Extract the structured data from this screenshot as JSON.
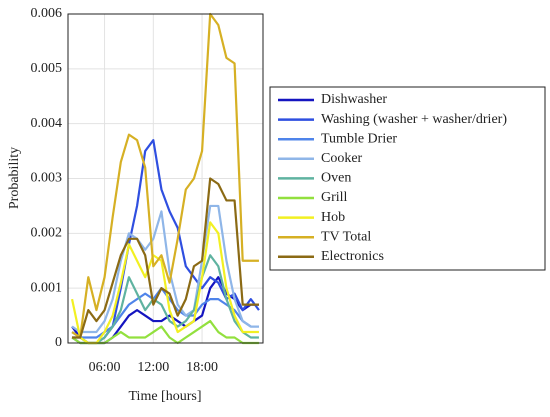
{
  "chart_data": {
    "type": "line",
    "x_label": "Time [hours]",
    "y_label": "Probability",
    "x": [
      2,
      3,
      4,
      5,
      6,
      7,
      8,
      9,
      10,
      11,
      12,
      13,
      14,
      15,
      16,
      17,
      18,
      19,
      20,
      21,
      22,
      23,
      24,
      25
    ],
    "xlim": [
      1.5,
      25.5
    ],
    "xticks": [
      {
        "value": 6,
        "label": "06:00"
      },
      {
        "value": 12,
        "label": "12:00"
      },
      {
        "value": 18,
        "label": "18:00"
      }
    ],
    "ylim": [
      0,
      0.006
    ],
    "yticks": [
      0,
      0.001,
      0.002,
      0.003,
      0.004,
      0.005,
      0.006
    ],
    "grid": true,
    "series": [
      {
        "name": "Dishwasher",
        "color": "#1414c0",
        "values": [
          0.0003,
          0.0001,
          0,
          0,
          0,
          0.0001,
          0.0003,
          0.0005,
          0.0006,
          0.0005,
          0.0004,
          0.0004,
          0.0005,
          0.0004,
          0.0003,
          0.0004,
          0.0005,
          0.001,
          0.0012,
          0.0009,
          0.0008,
          0.0006,
          0.0007,
          0.0007
        ]
      },
      {
        "name": "Washing (washer + washer/drier)",
        "color": "#2f4fe0",
        "values": [
          0.0001,
          0,
          0,
          0,
          0.0001,
          0.0003,
          0.001,
          0.0018,
          0.0025,
          0.0035,
          0.0037,
          0.0028,
          0.0024,
          0.0021,
          0.0014,
          0.0012,
          0.001,
          0.0012,
          0.0011,
          0.0008,
          0.0009,
          0.0006,
          0.0008,
          0.0006
        ]
      },
      {
        "name": "Tumble Drier",
        "color": "#4f84ea",
        "values": [
          0.0002,
          0.0001,
          0.0001,
          0.0001,
          0.0002,
          0.0003,
          0.0005,
          0.0007,
          0.0008,
          0.0009,
          0.0008,
          0.001,
          0.0008,
          0.0006,
          0.0005,
          0.0005,
          0.0007,
          0.0008,
          0.0008,
          0.0007,
          0.0006,
          0.0004,
          0.0003,
          0.0003
        ]
      },
      {
        "name": "Cooker",
        "color": "#8fb6e8",
        "values": [
          0.0003,
          0.0002,
          0.0002,
          0.0002,
          0.0004,
          0.0008,
          0.0015,
          0.002,
          0.0019,
          0.0017,
          0.0019,
          0.0024,
          0.0013,
          0.0007,
          0.0005,
          0.0006,
          0.0015,
          0.0025,
          0.0025,
          0.0015,
          0.0008,
          0.0004,
          0.0003,
          0.0003
        ]
      },
      {
        "name": "Oven",
        "color": "#5fb3a0",
        "values": [
          0.0001,
          0.0001,
          0,
          0,
          0.0001,
          0.0003,
          0.0006,
          0.0012,
          0.0009,
          0.0006,
          0.0008,
          0.0007,
          0.0004,
          0.0003,
          0.0004,
          0.0006,
          0.0012,
          0.0016,
          0.0014,
          0.0008,
          0.0004,
          0.0002,
          0.0001,
          0.0001
        ]
      },
      {
        "name": "Grill",
        "color": "#92e03e",
        "values": [
          0.0001,
          0,
          0,
          0,
          0,
          0.0001,
          0.0002,
          0.0001,
          0.0001,
          0.0001,
          0.0002,
          0.0003,
          0.0001,
          0,
          0.0001,
          0.0002,
          0.0003,
          0.0004,
          0.0002,
          0.0001,
          0.0001,
          0,
          0,
          0
        ]
      },
      {
        "name": "Hob",
        "color": "#f2f022",
        "values": [
          0.0008,
          0.0001,
          0,
          0,
          0.0002,
          0.0005,
          0.0011,
          0.0018,
          0.0015,
          0.0012,
          0.0016,
          0.0015,
          0.0006,
          0.0002,
          0.0003,
          0.0004,
          0.0012,
          0.0022,
          0.002,
          0.001,
          0.0005,
          0.0002,
          0.0002,
          0.0002
        ]
      },
      {
        "name": "TV Total",
        "color": "#d6b024",
        "values": [
          0.0002,
          0.0001,
          0.0012,
          0.0006,
          0.0012,
          0.0023,
          0.0033,
          0.0038,
          0.0037,
          0.0032,
          0.0014,
          0.0016,
          0.0011,
          0.0019,
          0.0028,
          0.003,
          0.0035,
          0.006,
          0.0058,
          0.0052,
          0.0051,
          0.0015,
          0.0015,
          0.0015
        ]
      },
      {
        "name": "Electronics",
        "color": "#8b6a14",
        "values": [
          0.0001,
          0.0001,
          0.0006,
          0.0004,
          0.0006,
          0.0011,
          0.0016,
          0.0019,
          0.0019,
          0.0016,
          0.0007,
          0.001,
          0.0009,
          0.0005,
          0.0008,
          0.0014,
          0.0015,
          0.003,
          0.0029,
          0.0026,
          0.0026,
          0.0007,
          0.0007,
          0.0007
        ]
      }
    ]
  }
}
